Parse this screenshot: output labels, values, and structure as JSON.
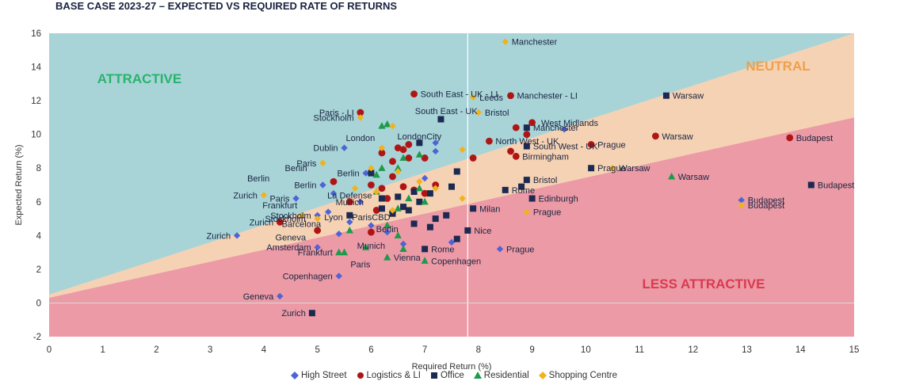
{
  "chart_data": {
    "type": "scatter",
    "title": "BASE CASE 2023-27 – EXPECTED VS REQUIRED RATE OF RETURNS",
    "xlabel": "Required Return (%)",
    "ylabel": "Expected Return (%)",
    "xlim": [
      0,
      15
    ],
    "ylim": [
      -2,
      16
    ],
    "xticks": [
      "0",
      "1",
      "2",
      "3",
      "4",
      "5",
      "6",
      "7",
      "8",
      "9",
      "10",
      "11",
      "12",
      "13",
      "14",
      "15"
    ],
    "yticks": [
      "-2",
      "0",
      "2",
      "4",
      "6",
      "8",
      "10",
      "12",
      "14",
      "16"
    ],
    "vertical_reference_line_x": 7.8,
    "grid": false,
    "legend_position": "bottom",
    "regions": [
      {
        "label": "ATTRACTIVE",
        "color": "#29b36b",
        "fill": "#a8d4d8"
      },
      {
        "label": "NEUTRAL",
        "color": "#f0a04b",
        "fill": "#f5d2b4"
      },
      {
        "label": "LESS ATTRACTIVE",
        "color": "#d93a4f",
        "fill": "#ec9aa6"
      }
    ],
    "region_boundaries": {
      "upper": [
        [
          0,
          0.5
        ],
        [
          15,
          16
        ]
      ],
      "lower": [
        [
          0,
          0.3
        ],
        [
          15,
          11
        ]
      ]
    },
    "series": [
      {
        "name": "High Street",
        "marker": "diamond",
        "color": "#4e63d6",
        "points": [
          {
            "x": 5.5,
            "y": 9.2,
            "label": "Dublin"
          },
          {
            "x": 5.9,
            "y": 7.7,
            "label": "Berlin"
          },
          {
            "x": 5.1,
            "y": 7.0,
            "label": "Berlin"
          },
          {
            "x": 4.6,
            "y": 6.2,
            "label": "Paris"
          },
          {
            "x": 3.5,
            "y": 4.0,
            "label": "Zurich"
          },
          {
            "x": 5.0,
            "y": 5.2,
            "label": "Stockholm"
          },
          {
            "x": 5.0,
            "y": 3.3,
            "label": "Amsterdam"
          },
          {
            "x": 5.4,
            "y": 1.6,
            "label": "Copenhagen"
          },
          {
            "x": 4.3,
            "y": 0.4,
            "label": "Geneva"
          },
          {
            "x": 8.4,
            "y": 3.2,
            "label": "Prague"
          },
          {
            "x": 12.9,
            "y": 6.1,
            "label": "Budapest"
          },
          {
            "x": 7.2,
            "y": 9.5
          },
          {
            "x": 7.2,
            "y": 9.0
          },
          {
            "x": 5.3,
            "y": 6.5
          },
          {
            "x": 5.8,
            "y": 6.0
          },
          {
            "x": 5.6,
            "y": 4.8
          },
          {
            "x": 5.4,
            "y": 4.1
          },
          {
            "x": 5.2,
            "y": 5.4
          },
          {
            "x": 6.0,
            "y": 4.6
          },
          {
            "x": 6.3,
            "y": 4.2
          },
          {
            "x": 6.6,
            "y": 3.5
          },
          {
            "x": 7.0,
            "y": 7.4
          },
          {
            "x": 9.6,
            "y": 10.3
          },
          {
            "x": 7.5,
            "y": 3.6
          }
        ]
      },
      {
        "name": "Logistics & LI",
        "marker": "circle",
        "color": "#b01515",
        "points": [
          {
            "x": 6.8,
            "y": 12.4,
            "label": "South East - UK - LI"
          },
          {
            "x": 8.6,
            "y": 12.3,
            "label": "Manchester - LI"
          },
          {
            "x": 5.8,
            "y": 11.3,
            "label": "Paris - LI"
          },
          {
            "x": 11.3,
            "y": 9.9,
            "label": "Warsaw"
          },
          {
            "x": 13.8,
            "y": 9.8,
            "label": "Budapest"
          },
          {
            "x": 8.2,
            "y": 9.6,
            "label": "North West - UK"
          },
          {
            "x": 8.9,
            "y": 10.0
          },
          {
            "x": 9.0,
            "y": 10.7
          },
          {
            "x": 8.7,
            "y": 10.4
          },
          {
            "x": 10.1,
            "y": 9.4,
            "label": "Prague"
          },
          {
            "x": 8.7,
            "y": 8.7,
            "label": "Birmingham"
          },
          {
            "x": 8.6,
            "y": 9.0
          },
          {
            "x": 7.9,
            "y": 8.6
          },
          {
            "x": 6.5,
            "y": 9.2
          },
          {
            "x": 6.7,
            "y": 9.4
          },
          {
            "x": 6.6,
            "y": 9.1
          },
          {
            "x": 7.0,
            "y": 8.6
          },
          {
            "x": 6.4,
            "y": 8.4
          },
          {
            "x": 6.2,
            "y": 8.9
          },
          {
            "x": 6.7,
            "y": 8.6
          },
          {
            "x": 5.3,
            "y": 7.2
          },
          {
            "x": 6.0,
            "y": 7.0
          },
          {
            "x": 6.2,
            "y": 6.8
          },
          {
            "x": 6.6,
            "y": 6.9
          },
          {
            "x": 7.2,
            "y": 7.0
          },
          {
            "x": 6.8,
            "y": 6.7
          },
          {
            "x": 6.3,
            "y": 6.2
          },
          {
            "x": 6.4,
            "y": 7.5
          },
          {
            "x": 5.6,
            "y": 6.0
          },
          {
            "x": 6.1,
            "y": 5.5
          },
          {
            "x": 6.4,
            "y": 5.4
          },
          {
            "x": 4.3,
            "y": 4.8,
            "label": "Zurich"
          },
          {
            "x": 5.0,
            "y": 4.3
          },
          {
            "x": 6.0,
            "y": 4.2
          },
          {
            "x": 7.0,
            "y": 6.5
          }
        ]
      },
      {
        "name": "Office",
        "marker": "square",
        "color": "#1c2a52",
        "points": [
          {
            "x": 11.5,
            "y": 12.3,
            "label": "Warsaw"
          },
          {
            "x": 14.2,
            "y": 7.0,
            "label": "Budapest"
          },
          {
            "x": 10.1,
            "y": 8.0,
            "label": "Prague"
          },
          {
            "x": 8.9,
            "y": 10.4,
            "label": "Manchester"
          },
          {
            "x": 8.9,
            "y": 9.3,
            "label": "South West - UK"
          },
          {
            "x": 8.9,
            "y": 7.3,
            "label": "Bristol"
          },
          {
            "x": 9.0,
            "y": 6.2,
            "label": "Edinburgh"
          },
          {
            "x": 8.5,
            "y": 6.7,
            "label": "Rome"
          },
          {
            "x": 7.9,
            "y": 5.6,
            "label": "Milan"
          },
          {
            "x": 7.8,
            "y": 4.3,
            "label": "Nice"
          },
          {
            "x": 7.6,
            "y": 3.8
          },
          {
            "x": 7.0,
            "y": 3.2,
            "label": "Rome"
          },
          {
            "x": 4.9,
            "y": -0.6,
            "label": "Zurich"
          },
          {
            "x": 7.3,
            "y": 10.9
          },
          {
            "x": 6.9,
            "y": 9.5
          },
          {
            "x": 7.6,
            "y": 7.8
          },
          {
            "x": 7.5,
            "y": 6.9
          },
          {
            "x": 7.1,
            "y": 6.5
          },
          {
            "x": 6.8,
            "y": 6.6
          },
          {
            "x": 6.5,
            "y": 6.3
          },
          {
            "x": 6.9,
            "y": 6.0
          },
          {
            "x": 6.6,
            "y": 5.7
          },
          {
            "x": 6.4,
            "y": 5.3
          },
          {
            "x": 7.4,
            "y": 5.2
          },
          {
            "x": 7.2,
            "y": 5.0
          },
          {
            "x": 7.1,
            "y": 4.5
          },
          {
            "x": 6.8,
            "y": 4.7
          },
          {
            "x": 6.2,
            "y": 6.2
          },
          {
            "x": 5.6,
            "y": 5.2
          },
          {
            "x": 6.2,
            "y": 5.6
          },
          {
            "x": 6.0,
            "y": 7.7
          },
          {
            "x": 8.8,
            "y": 6.9
          },
          {
            "x": 6.7,
            "y": 5.5
          }
        ]
      },
      {
        "name": "Residential",
        "marker": "triangle",
        "color": "#1e9a4a",
        "points": [
          {
            "x": 11.6,
            "y": 7.5,
            "label": "Warsaw"
          },
          {
            "x": 7.0,
            "y": 2.5,
            "label": "Copenhagen"
          },
          {
            "x": 6.3,
            "y": 2.7,
            "label": "Vienna"
          },
          {
            "x": 5.4,
            "y": 3.0,
            "label": "Frankfurt"
          },
          {
            "x": 6.2,
            "y": 10.5
          },
          {
            "x": 6.3,
            "y": 10.6
          },
          {
            "x": 6.6,
            "y": 8.6
          },
          {
            "x": 6.9,
            "y": 8.8
          },
          {
            "x": 6.5,
            "y": 8.0
          },
          {
            "x": 6.1,
            "y": 7.6
          },
          {
            "x": 6.2,
            "y": 8.0
          },
          {
            "x": 6.9,
            "y": 6.8
          },
          {
            "x": 6.1,
            "y": 6.6
          },
          {
            "x": 6.7,
            "y": 6.2
          },
          {
            "x": 6.5,
            "y": 5.6
          },
          {
            "x": 7.0,
            "y": 6.0
          },
          {
            "x": 6.3,
            "y": 4.6
          },
          {
            "x": 6.5,
            "y": 4.0
          },
          {
            "x": 5.9,
            "y": 3.3
          },
          {
            "x": 5.5,
            "y": 3.0
          },
          {
            "x": 5.6,
            "y": 4.3
          },
          {
            "x": 6.6,
            "y": 3.2
          }
        ]
      },
      {
        "name": "Shopping Centre",
        "marker": "diamond",
        "color": "#f0b31c",
        "points": [
          {
            "x": 8.5,
            "y": 15.5,
            "label": "Manchester"
          },
          {
            "x": 7.9,
            "y": 12.2,
            "label": "Leeds"
          },
          {
            "x": 8.0,
            "y": 11.3,
            "label": "Bristol"
          },
          {
            "x": 10.5,
            "y": 8.0,
            "label": "Warsaw"
          },
          {
            "x": 8.9,
            "y": 5.4,
            "label": "Prague"
          },
          {
            "x": 12.9,
            "y": 5.8,
            "label": "Budapest"
          },
          {
            "x": 4.0,
            "y": 6.4,
            "label": "Zurich"
          },
          {
            "x": 5.1,
            "y": 8.3,
            "label": "Paris"
          },
          {
            "x": 5.8,
            "y": 11.0,
            "label": "Stockholm"
          },
          {
            "x": 7.7,
            "y": 9.1
          },
          {
            "x": 6.4,
            "y": 10.5
          },
          {
            "x": 6.2,
            "y": 9.2
          },
          {
            "x": 6.5,
            "y": 7.8
          },
          {
            "x": 6.0,
            "y": 8.0
          },
          {
            "x": 6.1,
            "y": 6.6
          },
          {
            "x": 5.7,
            "y": 6.8
          },
          {
            "x": 7.2,
            "y": 6.8
          },
          {
            "x": 7.7,
            "y": 6.2
          },
          {
            "x": 6.4,
            "y": 5.5
          },
          {
            "x": 4.7,
            "y": 5.2
          },
          {
            "x": 5.0,
            "y": 5.0
          },
          {
            "x": 6.9,
            "y": 7.2
          }
        ]
      }
    ],
    "annotations": [
      {
        "text": "London",
        "x": 5.8,
        "y": 9.8
      },
      {
        "text": "LondonCity",
        "x": 6.9,
        "y": 9.9
      },
      {
        "text": "South East - UK",
        "x": 7.4,
        "y": 11.4
      },
      {
        "text": "West Midlands",
        "x": 9.7,
        "y": 10.7
      },
      {
        "text": "Berlin",
        "x": 3.9,
        "y": 7.4
      },
      {
        "text": "Berlin",
        "x": 4.6,
        "y": 8.0
      },
      {
        "text": "La Defense",
        "x": 5.6,
        "y": 6.4
      },
      {
        "text": "Frankfurt",
        "x": 4.3,
        "y": 5.8
      },
      {
        "text": "Munich",
        "x": 5.6,
        "y": 6.0
      },
      {
        "text": "Stockholm",
        "x": 4.4,
        "y": 5.0
      },
      {
        "text": "Barcelona",
        "x": 4.7,
        "y": 4.7
      },
      {
        "text": "Lyon",
        "x": 5.3,
        "y": 5.1
      },
      {
        "text": "ParisCBD",
        "x": 6.0,
        "y": 5.1
      },
      {
        "text": "Berlin",
        "x": 6.3,
        "y": 4.4
      },
      {
        "text": "Geneva",
        "x": 4.5,
        "y": 3.9
      },
      {
        "text": "Munich",
        "x": 6.0,
        "y": 3.4
      },
      {
        "text": "Paris",
        "x": 5.8,
        "y": 2.3
      }
    ]
  }
}
